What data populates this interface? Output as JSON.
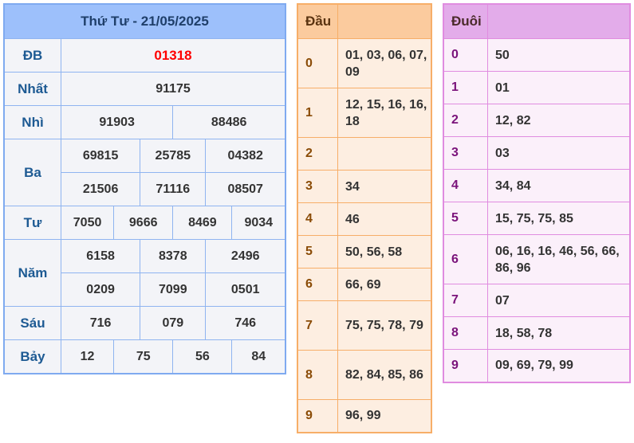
{
  "results": {
    "title": "Thứ Tư - 21/05/2025",
    "labels": {
      "db": "ĐB",
      "nhat": "Nhất",
      "nhi": "Nhì",
      "ba": "Ba",
      "tu": "Tư",
      "nam": "Năm",
      "sau": "Sáu",
      "bay": "Bảy"
    },
    "db": [
      "01318"
    ],
    "nhat": [
      "91175"
    ],
    "nhi": [
      "91903",
      "88486"
    ],
    "ba": [
      "69815",
      "25785",
      "04382",
      "21506",
      "71116",
      "08507"
    ],
    "tu": [
      "7050",
      "9666",
      "8469",
      "9034"
    ],
    "nam": [
      "6158",
      "8378",
      "2496",
      "0209",
      "7099",
      "0501"
    ],
    "sau": [
      "716",
      "079",
      "746"
    ],
    "bay": [
      "12",
      "75",
      "56",
      "84"
    ],
    "special_color": "#ff0000"
  },
  "dau": {
    "header": "Đầu",
    "rows": [
      {
        "k": "0",
        "v": "01, 03, 06, 07, 09"
      },
      {
        "k": "1",
        "v": "12, 15, 16, 16, 18"
      },
      {
        "k": "2",
        "v": ""
      },
      {
        "k": "3",
        "v": "34"
      },
      {
        "k": "4",
        "v": "46"
      },
      {
        "k": "5",
        "v": "50, 56, 58"
      },
      {
        "k": "6",
        "v": "66, 69"
      },
      {
        "k": "7",
        "v": "75, 75, 78, 79"
      },
      {
        "k": "8",
        "v": "82, 84, 85, 86"
      },
      {
        "k": "9",
        "v": "96, 99"
      }
    ]
  },
  "duoi": {
    "header": "Đuôi",
    "rows": [
      {
        "k": "0",
        "v": "50"
      },
      {
        "k": "1",
        "v": "01"
      },
      {
        "k": "2",
        "v": "12, 82"
      },
      {
        "k": "3",
        "v": "03"
      },
      {
        "k": "4",
        "v": "34, 84"
      },
      {
        "k": "5",
        "v": "15, 75, 75, 85"
      },
      {
        "k": "6",
        "v": "06, 16, 16, 46, 56, 66, 86, 96"
      },
      {
        "k": "7",
        "v": "07"
      },
      {
        "k": "8",
        "v": "18, 58, 78"
      },
      {
        "k": "9",
        "v": "09, 69, 79, 99"
      }
    ]
  }
}
